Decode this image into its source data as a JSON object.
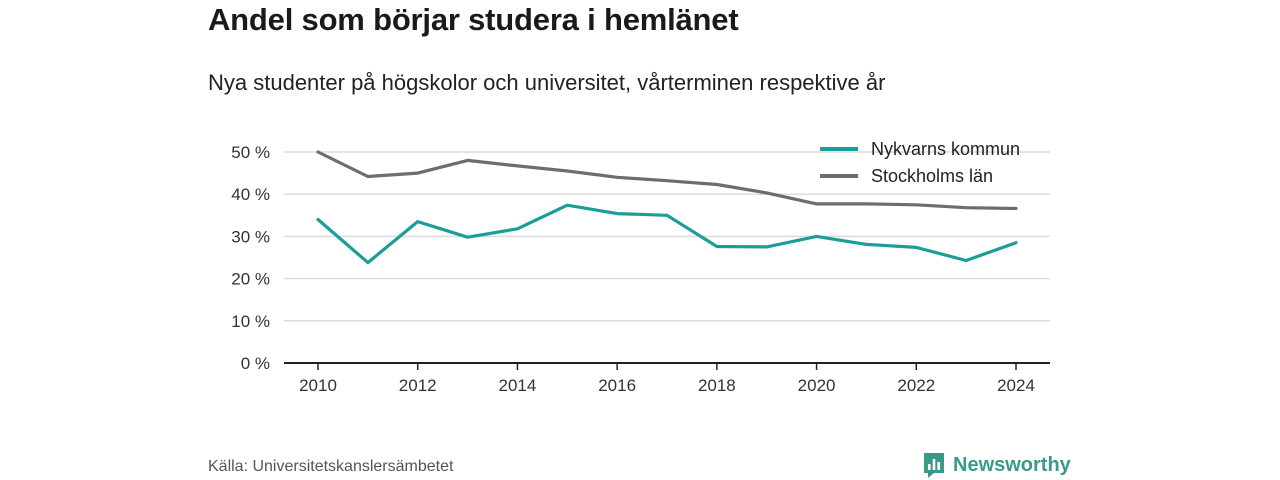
{
  "chart_data": {
    "type": "line",
    "title": "Andel som börjar studera i hemlänet",
    "subtitle": "Nya studenter på högskolor och universitet, vårterminen respektive år",
    "x": [
      2010,
      2011,
      2012,
      2013,
      2014,
      2015,
      2016,
      2017,
      2018,
      2019,
      2020,
      2021,
      2022,
      2023,
      2024
    ],
    "series": [
      {
        "name": "Nykvarns kommun",
        "color": "#1a9e96",
        "values": [
          34,
          23.8,
          33.5,
          29.8,
          31.8,
          37.4,
          35.4,
          35,
          27.6,
          27.5,
          30,
          28.1,
          27.4,
          24.3,
          28.5
        ]
      },
      {
        "name": "Stockholms län",
        "color": "#6d6c70",
        "values": [
          50,
          44.2,
          45,
          48,
          46.7,
          45.5,
          44,
          43.2,
          42.3,
          40.3,
          37.7,
          37.7,
          37.5,
          36.8,
          36.6
        ]
      }
    ],
    "xticks": [
      "2010",
      "2012",
      "2014",
      "2016",
      "2018",
      "2020",
      "2022",
      "2024"
    ],
    "yticks": [
      "0 %",
      "10 %",
      "20 %",
      "30 %",
      "40 %",
      "50 %"
    ],
    "ylim": [
      0,
      50
    ],
    "grid": true,
    "legend_position": "top-right"
  },
  "source": "Källa: Universitetskanslersämbetet",
  "brand": "Newsworthy",
  "brand_color": "#3a9a8a"
}
